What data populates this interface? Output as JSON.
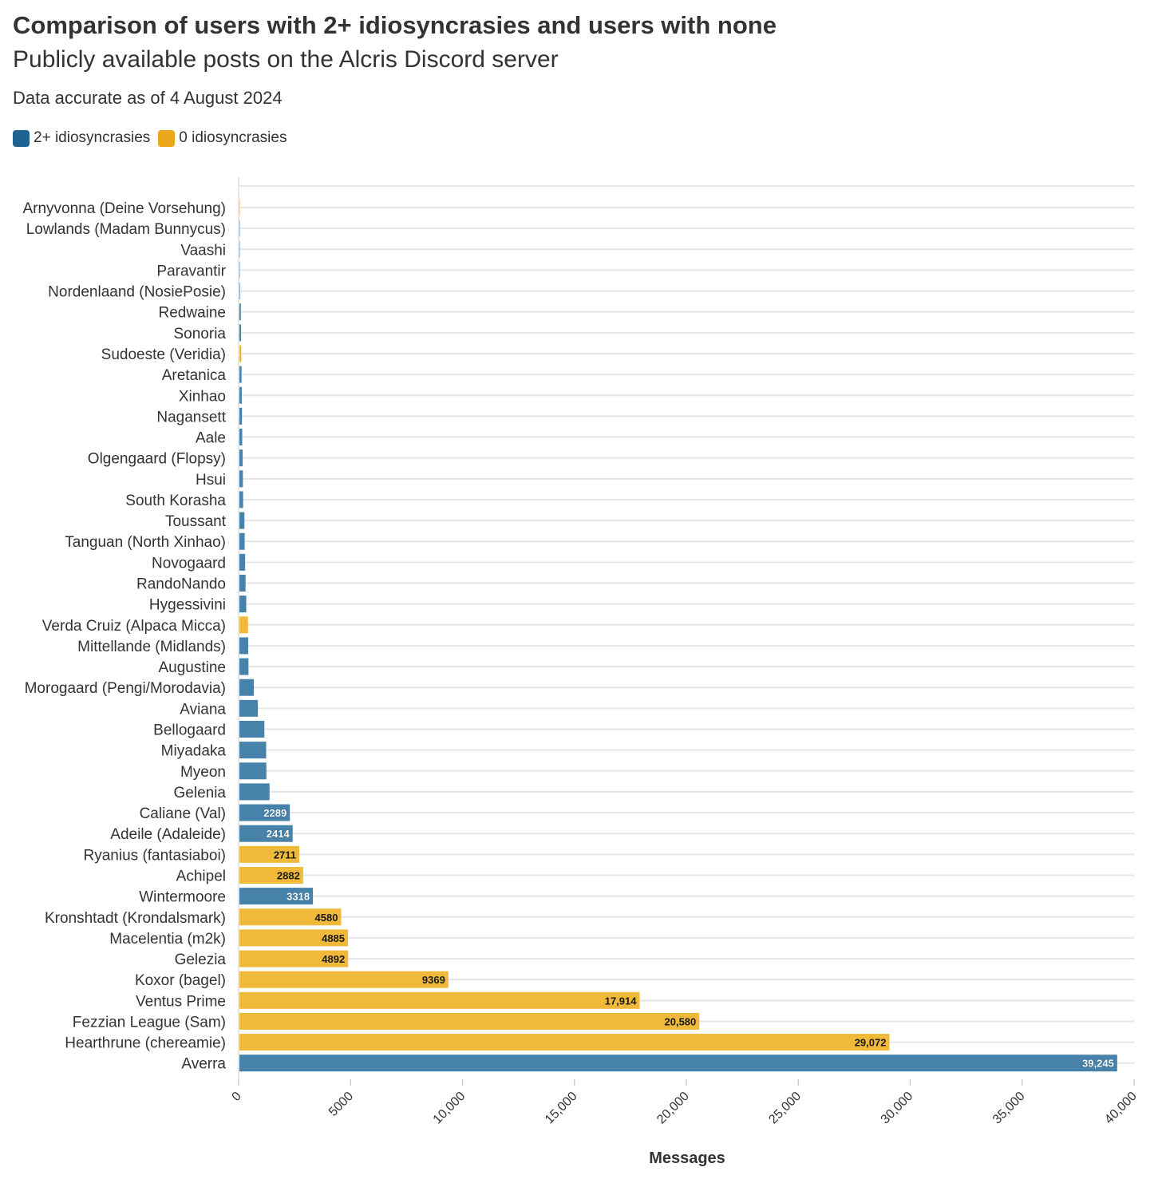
{
  "title": "Comparison of users with 2+ idiosyncrasies and users with none",
  "subtitle": "Publicly available posts on the Alcris Discord server",
  "note": "Data accurate as of 4 August 2024",
  "colors": {
    "two_plus": "#4682a9",
    "zero": "#f0b93a",
    "grid": "#e6e6e6",
    "text": "#333333"
  },
  "legend": [
    {
      "label": "2+ idiosyncrasies",
      "color": "#1f6392"
    },
    {
      "label": "0 idiosyncrasies",
      "color": "#e9a81a"
    }
  ],
  "chart_data": {
    "type": "bar",
    "orientation": "horizontal",
    "xlabel": "Messages",
    "xlim": [
      0,
      40000
    ],
    "x_ticks": [
      0,
      5000,
      10000,
      15000,
      20000,
      25000,
      30000,
      35000,
      40000
    ],
    "x_tick_labels": [
      "0",
      "5000",
      "10,000",
      "15,000",
      "20,000",
      "25,000",
      "30,000",
      "35,000",
      "40,000"
    ],
    "grid": true,
    "legend_position": "top-left",
    "series": [
      {
        "name": "2+ idiosyncrasies",
        "key": "two_plus"
      },
      {
        "name": "0 idiosyncrasies",
        "key": "zero"
      }
    ],
    "bars": [
      {
        "name": "Arnyvonna (Deine Vorsehung)",
        "value": 20,
        "group": "zero"
      },
      {
        "name": "Lowlands (Madam Bunnycus)",
        "value": 30,
        "group": "two_plus"
      },
      {
        "name": "Vaashi",
        "value": 40,
        "group": "two_plus"
      },
      {
        "name": "Paravantir",
        "value": 50,
        "group": "two_plus"
      },
      {
        "name": "Nordenlaand (NosiePosie)",
        "value": 60,
        "group": "two_plus"
      },
      {
        "name": "Redwaine",
        "value": 100,
        "group": "two_plus"
      },
      {
        "name": "Sonoria",
        "value": 110,
        "group": "two_plus"
      },
      {
        "name": "Sudoeste (Veridia)",
        "value": 120,
        "group": "zero"
      },
      {
        "name": "Aretanica",
        "value": 130,
        "group": "two_plus"
      },
      {
        "name": "Xinhao",
        "value": 140,
        "group": "two_plus"
      },
      {
        "name": "Nagansett",
        "value": 150,
        "group": "two_plus"
      },
      {
        "name": "Aale",
        "value": 160,
        "group": "two_plus"
      },
      {
        "name": "Olgengaard (Flopsy)",
        "value": 180,
        "group": "two_plus"
      },
      {
        "name": "Hsui",
        "value": 190,
        "group": "two_plus"
      },
      {
        "name": "South Korasha",
        "value": 200,
        "group": "two_plus"
      },
      {
        "name": "Toussant",
        "value": 260,
        "group": "two_plus"
      },
      {
        "name": "Tanguan (North Xinhao)",
        "value": 270,
        "group": "two_plus"
      },
      {
        "name": "Novogaard",
        "value": 290,
        "group": "two_plus"
      },
      {
        "name": "RandoNando",
        "value": 310,
        "group": "two_plus"
      },
      {
        "name": "Hygessivini",
        "value": 340,
        "group": "two_plus"
      },
      {
        "name": "Verda Cruiz (Alpaca Micca)",
        "value": 420,
        "group": "zero"
      },
      {
        "name": "Mittellande (Midlands)",
        "value": 430,
        "group": "two_plus"
      },
      {
        "name": "Augustine",
        "value": 440,
        "group": "two_plus"
      },
      {
        "name": "Morogaard (Pengi/Morodavia)",
        "value": 680,
        "group": "two_plus"
      },
      {
        "name": "Aviana",
        "value": 860,
        "group": "two_plus"
      },
      {
        "name": "Bellogaard",
        "value": 1150,
        "group": "two_plus"
      },
      {
        "name": "Miyadaka",
        "value": 1230,
        "group": "two_plus"
      },
      {
        "name": "Myeon",
        "value": 1240,
        "group": "two_plus"
      },
      {
        "name": "Gelenia",
        "value": 1380,
        "group": "two_plus"
      },
      {
        "name": "Caliane (Val)",
        "value": 2289,
        "group": "two_plus",
        "label": "2289"
      },
      {
        "name": "Adeile (Adaleide)",
        "value": 2414,
        "group": "two_plus",
        "label": "2414"
      },
      {
        "name": "Ryanius (fantasiaboi)",
        "value": 2711,
        "group": "zero",
        "label": "2711"
      },
      {
        "name": "Achipel",
        "value": 2882,
        "group": "zero",
        "label": "2882"
      },
      {
        "name": "Wintermoore",
        "value": 3318,
        "group": "two_plus",
        "label": "3318"
      },
      {
        "name": "Kronshtadt (Krondalsmark)",
        "value": 4580,
        "group": "zero",
        "label": "4580"
      },
      {
        "name": "Macelentia (m2k)",
        "value": 4885,
        "group": "zero",
        "label": "4885"
      },
      {
        "name": "Gelezia",
        "value": 4892,
        "group": "zero",
        "label": "4892"
      },
      {
        "name": "Koxor (bagel)",
        "value": 9369,
        "group": "zero",
        "label": "9369"
      },
      {
        "name": "Ventus Prime",
        "value": 17914,
        "group": "zero",
        "label": "17,914"
      },
      {
        "name": "Fezzian League (Sam)",
        "value": 20580,
        "group": "zero",
        "label": "20,580"
      },
      {
        "name": "Hearthrune (chereamie)",
        "value": 29072,
        "group": "zero",
        "label": "29,072"
      },
      {
        "name": "Averra",
        "value": 39245,
        "group": "two_plus",
        "label": "39,245"
      }
    ]
  }
}
